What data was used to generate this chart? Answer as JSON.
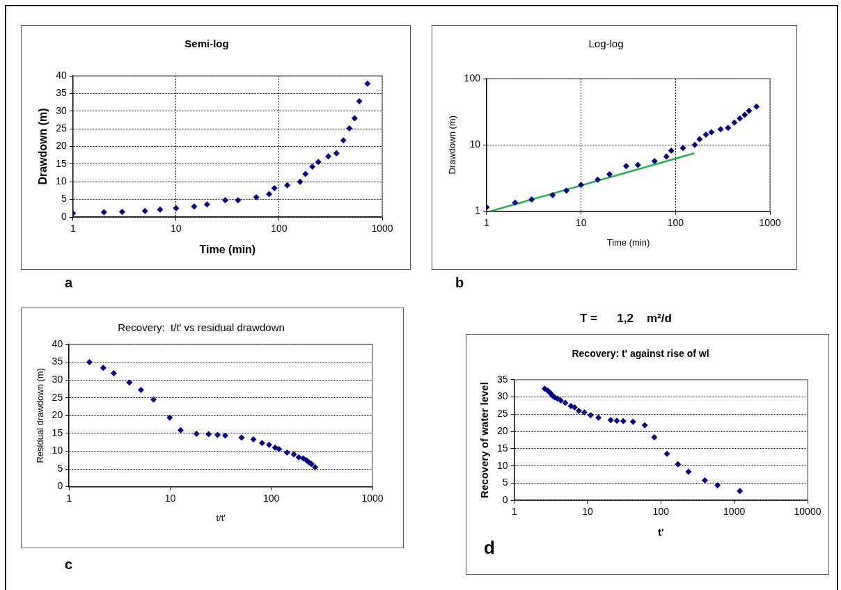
{
  "chart_data": [
    {
      "type": "scatter",
      "title": "Semi-log",
      "xlabel": "Time (min)",
      "ylabel": "Drawdown (m)",
      "log": "x",
      "grid": true,
      "marker": "diamond",
      "annotations": [
        "a"
      ],
      "x": [
        1,
        2,
        3,
        5,
        7,
        10,
        15,
        20,
        30,
        40,
        60,
        80,
        90,
        120,
        160,
        180,
        210,
        240,
        300,
        360,
        420,
        480,
        540,
        600,
        720
      ],
      "series": [
        {
          "color": "#000080",
          "values": [
            1.1,
            1.4,
            1.5,
            1.7,
            2.1,
            2.5,
            3.0,
            3.6,
            4.8,
            4.8,
            5.6,
            6.5,
            8.2,
            9.0,
            10.0,
            12.2,
            14.3,
            15.6,
            17.2,
            18.1,
            21.7,
            25.1,
            28.0,
            32.8,
            37.8
          ]
        }
      ],
      "xlim": [
        1,
        1000
      ],
      "xticks": [
        1,
        10,
        100,
        1000
      ],
      "ylim": [
        0,
        40
      ],
      "yticks": [
        0,
        5,
        10,
        15,
        20,
        25,
        30,
        35,
        40
      ]
    },
    {
      "type": "scatter",
      "title": "Log-log",
      "xlabel": "Time (min)",
      "ylabel": "Drawdown (m)",
      "log": "xy",
      "grid": true,
      "marker": "diamond",
      "annotations": [
        "b"
      ],
      "x": [
        1,
        2,
        3,
        5,
        7,
        10,
        15,
        20,
        30,
        40,
        60,
        80,
        90,
        120,
        160,
        180,
        210,
        240,
        300,
        360,
        420,
        480,
        540,
        600,
        720
      ],
      "series": [
        {
          "color": "#000080",
          "values": [
            1.15,
            1.35,
            1.5,
            1.75,
            2.05,
            2.5,
            3.0,
            3.6,
            4.8,
            5.0,
            5.7,
            6.7,
            8.2,
            9.0,
            10.0,
            12.2,
            14.3,
            15.6,
            17.2,
            18.1,
            21.7,
            25.1,
            28.5,
            32.8,
            37.8
          ]
        },
        {
          "type": "line",
          "color": "#22b14c",
          "marker": "none",
          "x": [
            1.1,
            158
          ],
          "values": [
            1.0,
            7.5
          ]
        }
      ],
      "xlim": [
        1,
        1000
      ],
      "xticks": [
        1,
        10,
        100,
        1000
      ],
      "ylim": [
        1,
        100
      ],
      "yticks": [
        1,
        10,
        100
      ]
    },
    {
      "type": "scatter",
      "title": "Recovery:  t/t' vs residual drawdown",
      "xlabel": "t/t'",
      "ylabel": "Residual drawdown (m)",
      "log": "x",
      "grid": "y",
      "marker": "diamond",
      "annotations": [
        "c"
      ],
      "x": [
        1.59,
        2.18,
        2.77,
        3.95,
        5.14,
        6.85,
        9.9,
        12.7,
        18.2,
        24,
        29.4,
        35,
        50.8,
        66.5,
        81,
        95,
        109,
        119,
        143,
        167,
        187,
        207,
        223,
        237,
        249,
        271
      ],
      "series": [
        {
          "color": "#000080",
          "values": [
            35.0,
            33.4,
            31.9,
            29.3,
            27.2,
            24.5,
            19.4,
            15.9,
            14.9,
            14.8,
            14.6,
            14.4,
            13.8,
            13.3,
            12.3,
            11.8,
            11.0,
            10.6,
            9.6,
            9.1,
            8.3,
            8.0,
            7.4,
            6.8,
            6.4,
            5.5
          ]
        }
      ],
      "xlim": [
        1,
        1000
      ],
      "xticks": [
        1,
        10,
        100,
        1000
      ],
      "ylim": [
        0,
        40
      ],
      "yticks": [
        0,
        5,
        10,
        15,
        20,
        25,
        30,
        35,
        40
      ]
    },
    {
      "type": "scatter",
      "title": "Recovery: t' against rise of wl",
      "xlabel": "t'",
      "ylabel": "Recovery of water level",
      "log": "x",
      "grid": "y",
      "marker": "diamond",
      "annotations": [
        "T =      1,2    m²/d",
        "d"
      ],
      "x": [
        2.61,
        2.86,
        3.04,
        3.21,
        3.34,
        3.55,
        3.89,
        4.3,
        4.97,
        5.93,
        6.66,
        7.59,
        9.05,
        11.0,
        14.1,
        20.7,
        25.1,
        30.7,
        41.7,
        60.3,
        81.3,
        121,
        171,
        238,
        398,
        593,
        1194
      ],
      "series": [
        {
          "color": "#000080",
          "values": [
            32.4,
            31.9,
            31.4,
            30.8,
            30.3,
            29.9,
            29.5,
            29.0,
            28.3,
            27.4,
            27.0,
            26.0,
            25.5,
            24.7,
            24.0,
            23.3,
            23.1,
            23.0,
            22.8,
            21.8,
            18.3,
            13.5,
            10.5,
            8.3,
            5.8,
            4.4,
            2.7
          ]
        }
      ],
      "xlim": [
        1,
        10000
      ],
      "xticks": [
        1,
        10,
        100,
        1000,
        10000
      ],
      "ylim": [
        0,
        35
      ],
      "yticks": [
        0,
        5,
        10,
        15,
        20,
        25,
        30,
        35
      ]
    }
  ]
}
